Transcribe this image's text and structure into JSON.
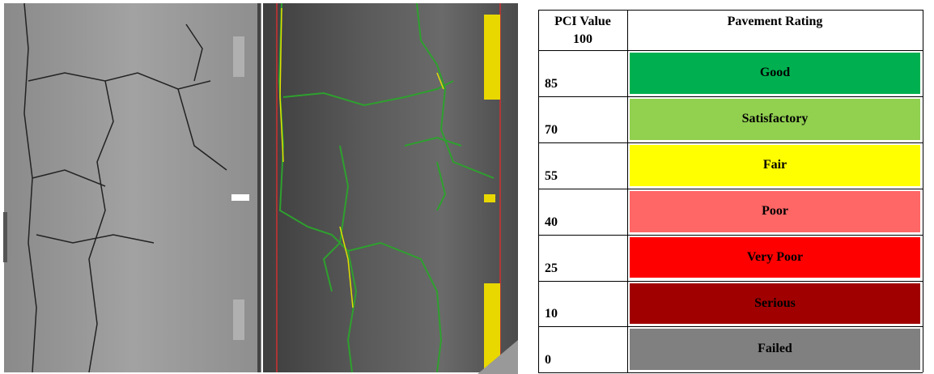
{
  "table": {
    "header": {
      "pci": "PCI Value",
      "rating": "Pavement Rating",
      "top_value": "100"
    },
    "rows": [
      {
        "pci": "85",
        "rating": "Good",
        "color": "#00b050",
        "text_color": "#000000"
      },
      {
        "pci": "70",
        "rating": "Satisfactory",
        "color": "#92d050",
        "text_color": "#000000"
      },
      {
        "pci": "55",
        "rating": "Fair",
        "color": "#ffff00",
        "text_color": "#000000"
      },
      {
        "pci": "40",
        "rating": "Poor",
        "color": "#ff6666",
        "text_color": "#000000"
      },
      {
        "pci": "25",
        "rating": "Very Poor",
        "color": "#ff0000",
        "text_color": "#000000"
      },
      {
        "pci": "10",
        "rating": "Serious",
        "color": "#a00000",
        "text_color": "#000000"
      },
      {
        "pci": "0",
        "rating": "Failed",
        "color": "#808080",
        "text_color": "#000000"
      }
    ]
  }
}
